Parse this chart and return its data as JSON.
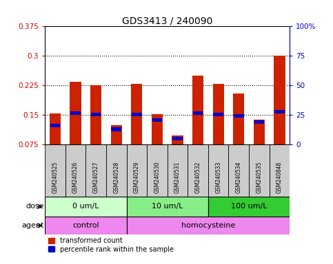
{
  "title": "GDS3413 / 240090",
  "samples": [
    "GSM240525",
    "GSM240526",
    "GSM240527",
    "GSM240528",
    "GSM240529",
    "GSM240530",
    "GSM240531",
    "GSM240532",
    "GSM240533",
    "GSM240534",
    "GSM240535",
    "GSM240848"
  ],
  "red_values": [
    0.155,
    0.235,
    0.225,
    0.125,
    0.23,
    0.152,
    0.098,
    0.25,
    0.23,
    0.205,
    0.138,
    0.3
  ],
  "blue_values": [
    0.123,
    0.155,
    0.152,
    0.114,
    0.152,
    0.138,
    0.09,
    0.155,
    0.152,
    0.148,
    0.132,
    0.158
  ],
  "ymin": 0.075,
  "ymax": 0.375,
  "yticks": [
    0.075,
    0.15,
    0.225,
    0.3,
    0.375
  ],
  "right_yticks": [
    0,
    25,
    50,
    75,
    100
  ],
  "right_ylabels": [
    "0",
    "25",
    "50",
    "75",
    "100%"
  ],
  "dose_groups": [
    {
      "label": "0 um/L",
      "start": 0,
      "end": 4
    },
    {
      "label": "10 um/L",
      "start": 4,
      "end": 8
    },
    {
      "label": "100 um/L",
      "start": 8,
      "end": 12
    }
  ],
  "dose_colors": [
    "#CCFFCC",
    "#88EE88",
    "#33CC33"
  ],
  "agent_groups": [
    {
      "label": "control",
      "start": 0,
      "end": 4
    },
    {
      "label": "homocysteine",
      "start": 4,
      "end": 12
    }
  ],
  "agent_color": "#EE88EE",
  "sample_box_color": "#CCCCCC",
  "bar_color": "#CC2200",
  "blue_color": "#0000CC",
  "bar_width": 0.55,
  "red_axis_color": "#CC0000",
  "blue_axis_color": "#0000CC",
  "title_fontsize": 10,
  "legend_red": "transformed count",
  "legend_blue": "percentile rank within the sample",
  "dose_label": "dose",
  "agent_label": "agent"
}
